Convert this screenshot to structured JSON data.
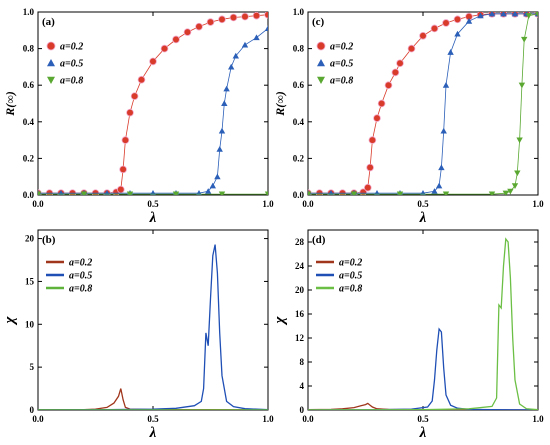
{
  "chart_data": [
    {
      "panel_label": "(a)",
      "type": "scatter",
      "xlabel": "λ",
      "ylabel": "R(∞)",
      "xlim": [
        0.0,
        1.0
      ],
      "ylim": [
        0.0,
        1.0
      ],
      "x_ticks": [
        "0.0",
        "0.5",
        "1.0"
      ],
      "y_ticks": [
        "0.0",
        "0.2",
        "0.4",
        "0.6",
        "0.8",
        "1.0"
      ],
      "legend_position": "upper-left",
      "series": [
        {
          "name": "a=0.2",
          "color": "#d93b2b",
          "marker": "circle",
          "x": [
            0.0,
            0.05,
            0.1,
            0.15,
            0.2,
            0.25,
            0.3,
            0.34,
            0.36,
            0.37,
            0.38,
            0.4,
            0.42,
            0.45,
            0.5,
            0.55,
            0.6,
            0.65,
            0.7,
            0.75,
            0.8,
            0.85,
            0.9,
            0.95,
            1.0
          ],
          "y": [
            0.01,
            0.01,
            0.01,
            0.01,
            0.01,
            0.01,
            0.01,
            0.015,
            0.03,
            0.14,
            0.3,
            0.45,
            0.54,
            0.63,
            0.73,
            0.8,
            0.85,
            0.89,
            0.92,
            0.945,
            0.96,
            0.97,
            0.975,
            0.98,
            0.985
          ]
        },
        {
          "name": "a=0.5",
          "color": "#2b5fb8",
          "marker": "triangle-up",
          "x": [
            0.0,
            0.1,
            0.2,
            0.3,
            0.4,
            0.5,
            0.6,
            0.7,
            0.74,
            0.76,
            0.78,
            0.79,
            0.8,
            0.81,
            0.82,
            0.84,
            0.86,
            0.9,
            0.95,
            1.0
          ],
          "y": [
            0.01,
            0.01,
            0.01,
            0.01,
            0.01,
            0.01,
            0.01,
            0.01,
            0.02,
            0.05,
            0.1,
            0.25,
            0.35,
            0.5,
            0.58,
            0.7,
            0.76,
            0.82,
            0.86,
            0.91
          ]
        },
        {
          "name": "a=0.8",
          "color": "#5aa832",
          "marker": "triangle-down",
          "x": [
            0.0,
            0.2,
            0.4,
            0.6,
            0.8,
            1.0
          ],
          "y": [
            0.005,
            0.005,
            0.005,
            0.005,
            0.005,
            0.005
          ]
        }
      ]
    },
    {
      "panel_label": "(c)",
      "type": "scatter",
      "xlabel": "λ",
      "ylabel": "R(∞)",
      "xlim": [
        0.0,
        1.0
      ],
      "ylim": [
        0.0,
        1.0
      ],
      "x_ticks": [
        "0.0",
        "0.5",
        "1.0"
      ],
      "y_ticks": [
        "0.0",
        "0.2",
        "0.4",
        "0.6",
        "0.8",
        "1.0"
      ],
      "legend_position": "upper-left",
      "series": [
        {
          "name": "a=0.2",
          "color": "#d93b2b",
          "marker": "circle",
          "x": [
            0.0,
            0.05,
            0.1,
            0.15,
            0.2,
            0.24,
            0.26,
            0.27,
            0.28,
            0.3,
            0.32,
            0.35,
            0.38,
            0.4,
            0.45,
            0.5,
            0.55,
            0.6,
            0.65,
            0.7,
            0.75,
            0.8,
            0.85,
            0.9,
            0.95,
            1.0
          ],
          "y": [
            0.01,
            0.01,
            0.01,
            0.01,
            0.01,
            0.015,
            0.04,
            0.15,
            0.3,
            0.42,
            0.5,
            0.6,
            0.67,
            0.72,
            0.8,
            0.87,
            0.91,
            0.94,
            0.96,
            0.975,
            0.985,
            0.99,
            0.99,
            0.99,
            0.99,
            0.99
          ]
        },
        {
          "name": "a=0.5",
          "color": "#2b5fb8",
          "marker": "triangle-up",
          "x": [
            0.0,
            0.1,
            0.2,
            0.3,
            0.4,
            0.5,
            0.55,
            0.57,
            0.58,
            0.59,
            0.6,
            0.62,
            0.65,
            0.7,
            0.75,
            0.8,
            0.85,
            0.9,
            0.95,
            1.0
          ],
          "y": [
            0.01,
            0.01,
            0.01,
            0.01,
            0.01,
            0.01,
            0.02,
            0.05,
            0.15,
            0.35,
            0.6,
            0.78,
            0.88,
            0.95,
            0.98,
            0.99,
            0.99,
            0.99,
            0.99,
            0.99
          ]
        },
        {
          "name": "a=0.8",
          "color": "#5aa832",
          "marker": "triangle-down",
          "x": [
            0.0,
            0.2,
            0.4,
            0.6,
            0.8,
            0.86,
            0.88,
            0.9,
            0.91,
            0.92,
            0.93,
            0.94,
            0.96,
            1.0
          ],
          "y": [
            0.005,
            0.005,
            0.005,
            0.005,
            0.005,
            0.01,
            0.02,
            0.05,
            0.12,
            0.3,
            0.6,
            0.85,
            0.98,
            0.99
          ]
        }
      ]
    },
    {
      "panel_label": "(b)",
      "type": "line",
      "xlabel": "λ",
      "ylabel": "χ",
      "xlim": [
        0.0,
        1.0
      ],
      "ylim": [
        0,
        21
      ],
      "x_ticks": [
        "0.0",
        "0.5",
        "1.0"
      ],
      "y_ticks": [
        "0",
        "5",
        "10",
        "15",
        "20"
      ],
      "legend_position": "upper-left",
      "series": [
        {
          "name": "a=0.2",
          "color": "#a0361c",
          "x": [
            0.0,
            0.1,
            0.2,
            0.25,
            0.3,
            0.33,
            0.35,
            0.36,
            0.37,
            0.38,
            0.4,
            0.5,
            0.6,
            1.0
          ],
          "y": [
            0.02,
            0.03,
            0.05,
            0.1,
            0.3,
            0.8,
            1.6,
            2.5,
            1.2,
            0.3,
            0.1,
            0.05,
            0.03,
            0.02
          ]
        },
        {
          "name": "a=0.5",
          "color": "#1f4fb5",
          "x": [
            0.0,
            0.3,
            0.5,
            0.6,
            0.68,
            0.71,
            0.72,
            0.73,
            0.74,
            0.75,
            0.76,
            0.77,
            0.78,
            0.79,
            0.8,
            0.82,
            0.85,
            0.9,
            1.0
          ],
          "y": [
            0.02,
            0.05,
            0.1,
            0.2,
            0.5,
            1.0,
            2.5,
            9.0,
            7.5,
            13.0,
            18.0,
            19.3,
            16.0,
            9.0,
            4.0,
            1.0,
            0.4,
            0.15,
            0.05
          ]
        },
        {
          "name": "a=0.8",
          "color": "#5fb23a",
          "x": [
            0.0,
            0.5,
            1.0
          ],
          "y": [
            0.01,
            0.01,
            0.01
          ]
        }
      ]
    },
    {
      "panel_label": "(d)",
      "type": "line",
      "xlabel": "λ",
      "ylabel": "χ",
      "xlim": [
        0.0,
        1.0
      ],
      "ylim": [
        0,
        30
      ],
      "x_ticks": [
        "0.0",
        "0.5",
        "1.0"
      ],
      "y_ticks": [
        "0",
        "4",
        "8",
        "12",
        "16",
        "20",
        "24",
        "28"
      ],
      "legend_position": "upper-left",
      "series": [
        {
          "name": "a=0.2",
          "color": "#a0361c",
          "x": [
            0.0,
            0.1,
            0.15,
            0.2,
            0.23,
            0.25,
            0.26,
            0.27,
            0.28,
            0.3,
            0.35,
            0.5,
            1.0
          ],
          "y": [
            0.05,
            0.1,
            0.2,
            0.4,
            0.7,
            0.9,
            1.1,
            0.8,
            0.5,
            0.2,
            0.1,
            0.05,
            0.02
          ]
        },
        {
          "name": "a=0.5",
          "color": "#1f4fb5",
          "x": [
            0.0,
            0.3,
            0.45,
            0.52,
            0.54,
            0.55,
            0.56,
            0.57,
            0.58,
            0.59,
            0.6,
            0.62,
            0.65,
            0.7,
            0.8,
            1.0
          ],
          "y": [
            0.02,
            0.05,
            0.15,
            0.5,
            1.5,
            5.0,
            10.0,
            13.5,
            13.0,
            7.0,
            2.5,
            0.8,
            0.3,
            0.1,
            0.05,
            0.02
          ]
        },
        {
          "name": "a=0.8",
          "color": "#6cbf45",
          "x": [
            0.0,
            0.5,
            0.7,
            0.8,
            0.82,
            0.83,
            0.84,
            0.85,
            0.86,
            0.87,
            0.88,
            0.89,
            0.9,
            0.92,
            0.95,
            1.0
          ],
          "y": [
            0.02,
            0.05,
            0.2,
            0.6,
            2.0,
            17.5,
            17.0,
            24.0,
            28.5,
            28.0,
            22.0,
            12.0,
            5.0,
            1.0,
            0.2,
            0.05
          ]
        }
      ]
    }
  ]
}
